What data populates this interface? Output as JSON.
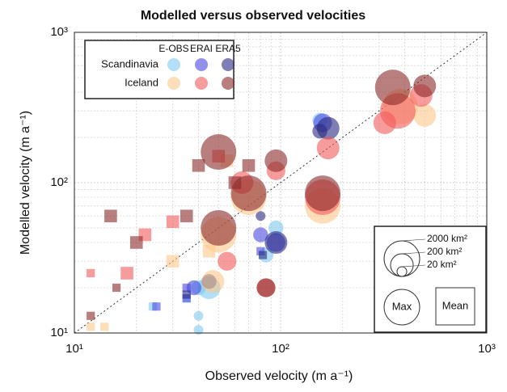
{
  "chart_data": {
    "type": "scatter",
    "title": "Modelled versus observed velocities",
    "x_label": "Observed velocity (m a⁻¹)",
    "y_label": "Modelled velocity (m a⁻¹)",
    "log_x": true,
    "log_y": true,
    "grid": true,
    "xlim": [
      10,
      1000
    ],
    "ylim": [
      10,
      1000
    ],
    "xticks": [
      {
        "value": 10,
        "label": "10¹"
      },
      {
        "value": 100,
        "label": "10²"
      },
      {
        "value": 1000,
        "label": "10³"
      }
    ],
    "yticks": [
      {
        "value": 10,
        "label": "10¹"
      },
      {
        "value": 100,
        "label": "10²"
      },
      {
        "value": 1000,
        "label": "10³"
      }
    ],
    "minor_ticks": [
      20,
      30,
      40,
      50,
      60,
      70,
      80,
      90,
      200,
      300,
      400,
      500,
      600,
      700,
      800,
      900
    ],
    "opacity": 0.6,
    "groups": [
      {
        "name": "Scandinavia",
        "series": [
          {
            "name": "E-OBS",
            "color": "#7fc8f0",
            "x": [
              40,
              40,
              40,
              45,
              95,
              155,
              85,
              24,
              35
            ],
            "values": [
              10.5,
              13,
              20,
              20,
              50,
              260,
              33,
              15,
              17
            ],
            "sizes": [
              20,
              20,
              50,
              200,
              50,
              50,
              50,
              20,
              20
            ],
            "markers": [
              "circle",
              "circle",
              "circle",
              "circle",
              "circle",
              "circle",
              "circle",
              "square",
              "square"
            ]
          },
          {
            "name": "ERAI",
            "color": "#4a4ae0",
            "x": [
              38,
              80,
              95,
              160,
              25,
              35,
              35,
              80
            ],
            "values": [
              20,
              45,
              40,
              250,
              15,
              17,
              20,
              35
            ],
            "sizes": [
              50,
              50,
              100,
              100,
              20,
              20,
              20,
              20
            ],
            "markers": [
              "circle",
              "circle",
              "circle",
              "circle",
              "square",
              "square",
              "square",
              "square"
            ]
          },
          {
            "name": "ERA5",
            "color": "#2a2a80",
            "x": [
              45,
              95,
              170,
              155,
              80,
              35,
              82
            ],
            "values": [
              22,
              40,
              230,
              220,
              60,
              18,
              33
            ],
            "sizes": [
              50,
              200,
              200,
              50,
              20,
              20,
              20
            ],
            "markers": [
              "circle",
              "circle",
              "circle",
              "circle",
              "circle",
              "square",
              "square"
            ]
          }
        ]
      },
      {
        "name": "Iceland",
        "series": [
          {
            "name": "E-OBS",
            "color": "#fdc88a",
            "x": [
              380,
              160,
              50,
              70,
              500,
              47,
              12,
              30,
              55,
              14,
              45
            ],
            "values": [
              320,
              70,
              45,
              80,
              280,
              22,
              11,
              30,
              140,
              11,
              35
            ],
            "sizes": [
              2000,
              2000,
              2000,
              2000,
              200,
              200,
              20,
              50,
              50,
              20,
              50
            ],
            "markers": [
              "circle",
              "circle",
              "circle",
              "circle",
              "circle",
              "circle",
              "square",
              "square",
              "square",
              "square",
              "square"
            ]
          },
          {
            "name": "ERAI",
            "color": "#f25a5a",
            "x": [
              370,
              160,
              480,
              320,
              170,
              65,
              85,
              12,
              18,
              22,
              30,
              50,
              95,
              55
            ],
            "values": [
              300,
              80,
              380,
              250,
              170,
              100,
              20,
              25,
              25,
              45,
              55,
              150,
              120,
              30
            ],
            "sizes": [
              2000,
              2000,
              200,
              200,
              200,
              200,
              100,
              20,
              50,
              50,
              50,
              50,
              100,
              100
            ],
            "markers": [
              "circle",
              "circle",
              "circle",
              "circle",
              "circle",
              "circle",
              "circle",
              "square",
              "square",
              "square",
              "square",
              "square",
              "circle",
              "circle"
            ]
          },
          {
            "name": "ERA5",
            "color": "#8b2a2a",
            "x": [
              350,
              160,
              50,
              70,
              500,
              50,
              95,
              85,
              40,
              15,
              20,
              35,
              60,
              70,
              12,
              16
            ],
            "values": [
              430,
              85,
              50,
              85,
              440,
              160,
              140,
              20,
              130,
              60,
              40,
              60,
              100,
              130,
              13,
              20
            ],
            "sizes": [
              2000,
              2000,
              2000,
              2000,
              200,
              2000,
              200,
              100,
              50,
              50,
              50,
              50,
              50,
              50,
              20,
              20
            ],
            "markers": [
              "circle",
              "circle",
              "circle",
              "circle",
              "circle",
              "circle",
              "circle",
              "circle",
              "square",
              "square",
              "square",
              "square",
              "square",
              "square",
              "square",
              "square"
            ]
          }
        ]
      }
    ],
    "size_legend": [
      {
        "value": 2000,
        "label": "2000 km²"
      },
      {
        "value": 200,
        "label": "200 km²"
      },
      {
        "value": 20,
        "label": "20 km²"
      }
    ],
    "shape_legend": [
      "Max",
      "Mean"
    ]
  }
}
